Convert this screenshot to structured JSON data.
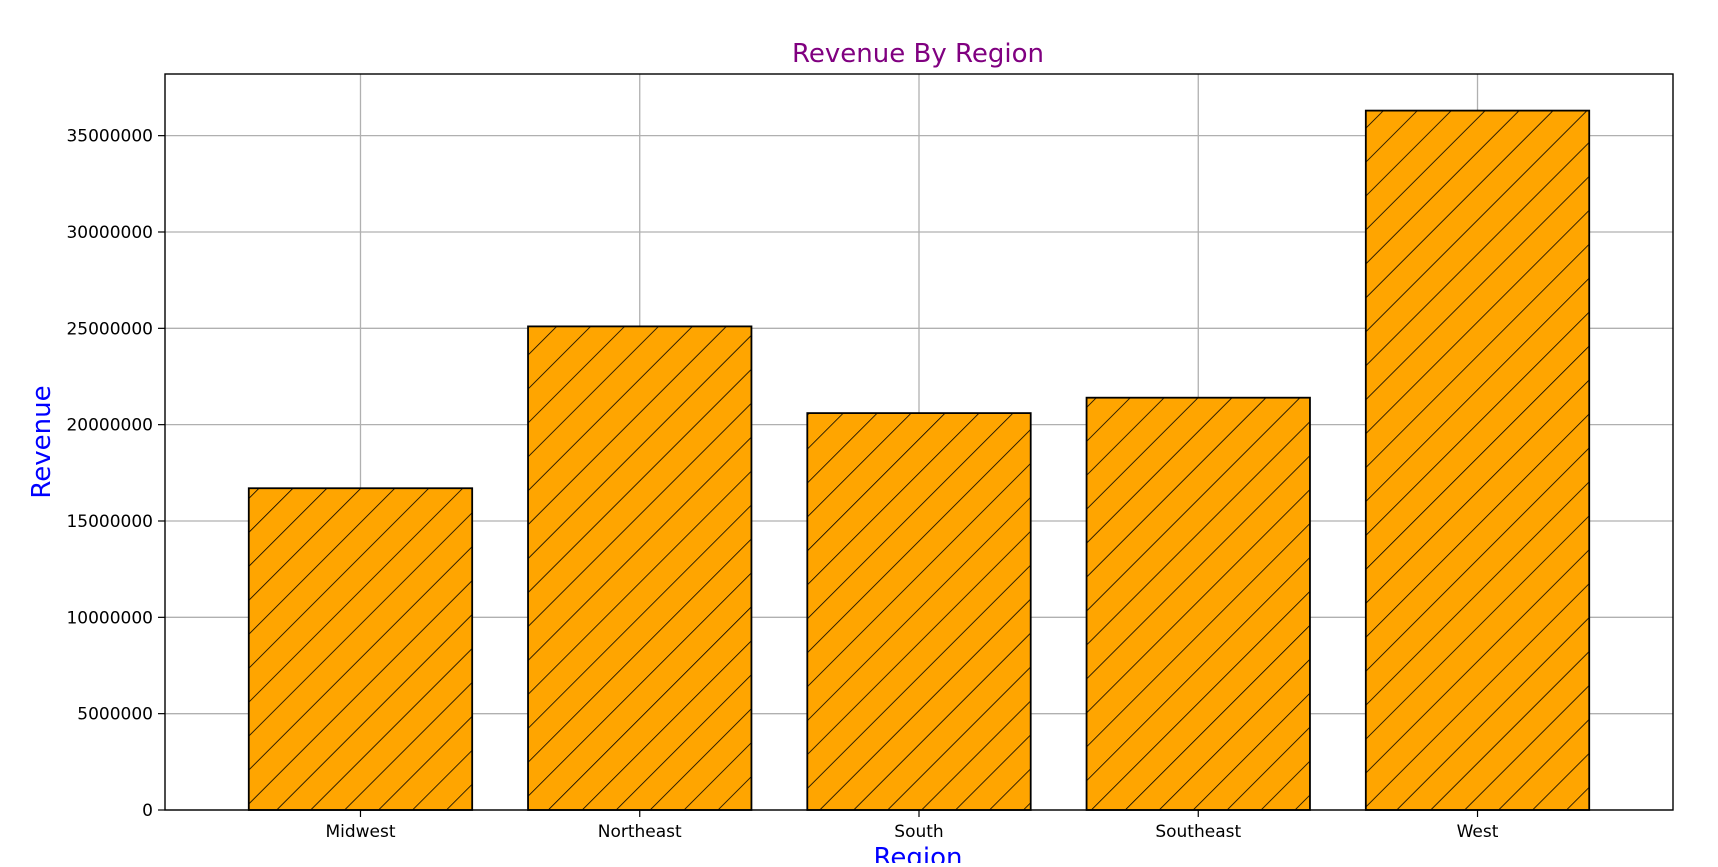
{
  "chart_data": {
    "type": "bar",
    "title": "Revenue By Region",
    "xlabel": "Region",
    "ylabel": "Revenue",
    "categories": [
      "Midwest",
      "Northeast",
      "South",
      "Southeast",
      "West"
    ],
    "values": [
      16700000,
      25100000,
      20600000,
      21400000,
      36300000
    ],
    "ylim": [
      0,
      38200000
    ],
    "yticks": [
      0,
      5000000,
      10000000,
      15000000,
      20000000,
      25000000,
      30000000,
      35000000
    ],
    "ytick_labels": [
      "0",
      "5000000",
      "10000000",
      "15000000",
      "20000000",
      "25000000",
      "30000000",
      "35000000"
    ],
    "grid": true,
    "bar_fill": "hatched diagonal",
    "colors": {
      "bar": "#FFA500",
      "bar_edge": "#000000",
      "hatch": "#000000",
      "title": "#800080",
      "axis_label": "#0000FF",
      "grid": "#B0B0B0"
    }
  }
}
